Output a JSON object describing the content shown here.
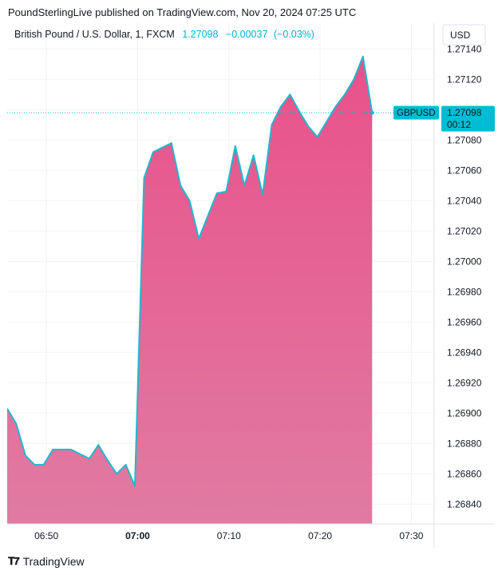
{
  "header": {
    "publisher": "PoundSterlingLive published on TradingView.com, Nov 20, 2024 07:25 UTC"
  },
  "legend": {
    "instrument": "British Pound / U.S. Dollar, 1, FXCM",
    "last": "1.27098",
    "change": "−0.00037",
    "change_pct": "(−0.03%)"
  },
  "price_scale": {
    "currency": "USD",
    "symbol_tag": "GBPUSD",
    "price_tag": "1.27098",
    "countdown": "00:12"
  },
  "footer": {
    "logo_icon": "tradingview-logo-icon",
    "brand": "TradingView"
  },
  "colors": {
    "line": "#1fb8cf",
    "area_top": "#e9518a",
    "area_bottom": "#e07ba2",
    "tag_bg": "#00bcd4",
    "axis_text": "#131722",
    "grid": "#f2f3f5"
  },
  "chart_data": {
    "type": "area",
    "x_ticks": [
      {
        "label": "06:50",
        "t": -10,
        "bold": false
      },
      {
        "label": "07:00",
        "t": 0,
        "bold": true
      },
      {
        "label": "07:10",
        "t": 10,
        "bold": false
      },
      {
        "label": "07:20",
        "t": 20,
        "bold": false
      },
      {
        "label": "07:30",
        "t": 30,
        "bold": false
      }
    ],
    "y_ticks": [
      "1.27140",
      "1.27120",
      "1.27100",
      "1.27080",
      "1.27060",
      "1.27040",
      "1.27020",
      "1.27000",
      "1.26980",
      "1.26960",
      "1.26940",
      "1.26920",
      "1.26900",
      "1.26880",
      "1.26860",
      "1.26840"
    ],
    "xlim": [
      -14.3,
      32.5
    ],
    "ylim": [
      1.26827,
      1.27157
    ],
    "last_value": 1.27098,
    "series": [
      {
        "symbol": "GBPUSD",
        "t": [
          -14.3,
          -13.3,
          -12.3,
          -11.3,
          -10.3,
          -9.3,
          -8.3,
          -7.3,
          -6.3,
          -5.3,
          -4.3,
          -3.3,
          -2.3,
          -1.3,
          -0.3,
          0.7,
          1.7,
          2.7,
          3.7,
          4.7,
          5.7,
          6.7,
          7.7,
          8.7,
          9.7,
          10.7,
          11.7,
          12.7,
          13.7,
          14.7,
          15.7,
          16.7,
          17.7,
          18.7,
          19.7,
          20.7,
          21.7,
          22.7,
          23.7,
          24.7
        ],
        "values": [
          1.26903,
          1.26893,
          1.26872,
          1.26866,
          1.26866,
          1.26876,
          1.26876,
          1.26876,
          1.26873,
          1.2687,
          1.26879,
          1.26869,
          1.2686,
          1.26866,
          1.26852,
          1.27055,
          1.27072,
          1.27075,
          1.27078,
          1.2705,
          1.2704,
          1.27015,
          1.2703,
          1.27045,
          1.27046,
          1.27076,
          1.2705,
          1.2707,
          1.27044,
          1.2709,
          1.27102,
          1.2711,
          1.27099,
          1.27089,
          1.27082,
          1.27092,
          1.27102,
          1.2711,
          1.2712,
          1.27135
        ],
        "last_t": 25.7
      }
    ]
  }
}
